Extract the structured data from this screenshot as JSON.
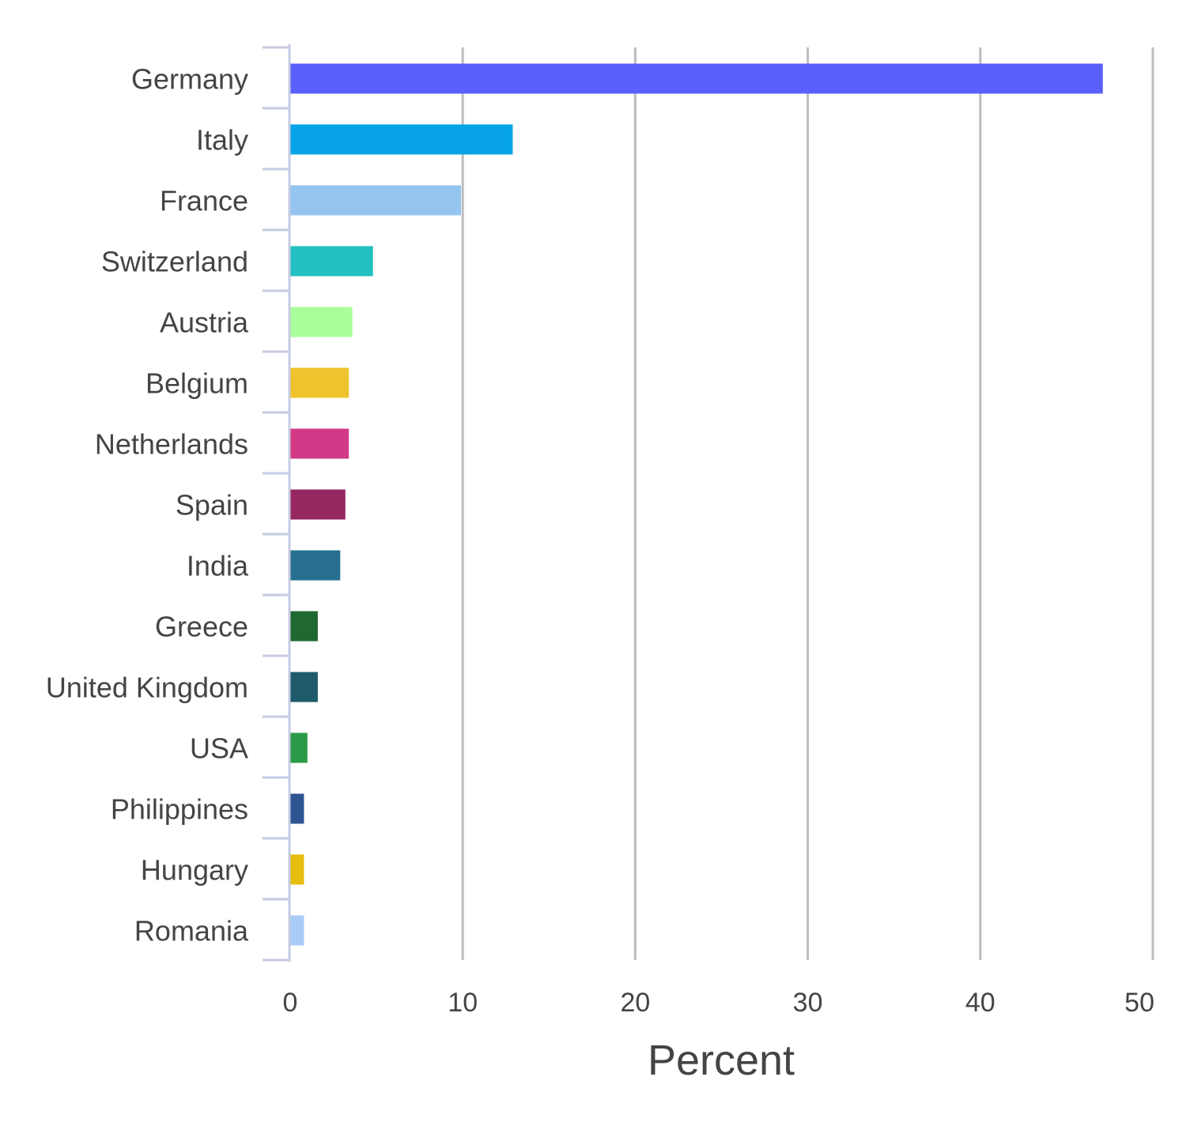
{
  "chart_data": {
    "type": "bar",
    "orientation": "horizontal",
    "categories": [
      "Germany",
      "Italy",
      "France",
      "Switzerland",
      "Austria",
      "Belgium",
      "Netherlands",
      "Spain",
      "India",
      "Greece",
      "United Kingdom",
      "USA",
      "Philippines",
      "Hungary",
      "Romania"
    ],
    "values": [
      47.1,
      12.9,
      9.9,
      4.8,
      3.6,
      3.4,
      3.4,
      3.2,
      2.9,
      1.6,
      1.6,
      1.0,
      0.8,
      0.8,
      0.8
    ],
    "colors": [
      "#5b5ffb",
      "#06a4e6",
      "#94c5f0",
      "#22c0c0",
      "#abfd9b",
      "#eec32e",
      "#d23a88",
      "#952761",
      "#266f91",
      "#1f682f",
      "#1f5b6b",
      "#2c9b47",
      "#2e5592",
      "#e6bc0e",
      "#a9cbf7"
    ],
    "title": "",
    "xlabel": "Percent",
    "ylabel": "",
    "xlim": [
      0,
      50
    ],
    "xticks": [
      0,
      10,
      20,
      30,
      40,
      50
    ],
    "grid": "vertical",
    "legend": "none"
  }
}
